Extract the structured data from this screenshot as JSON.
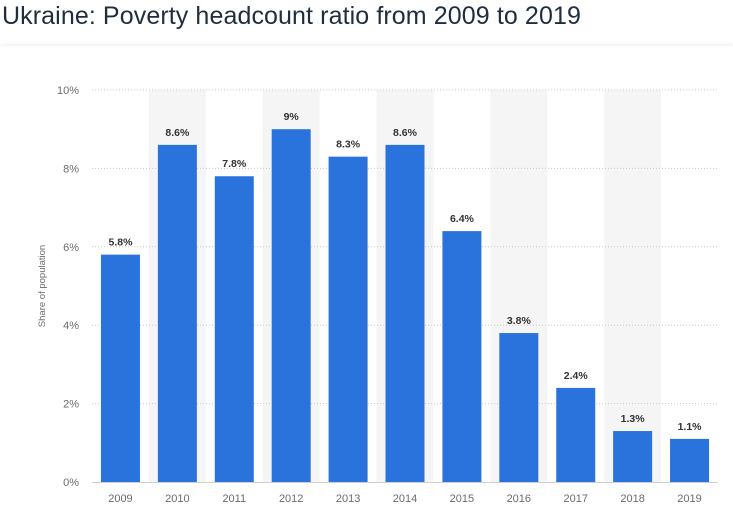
{
  "chart_data": {
    "type": "bar",
    "title": "Ukraine: Poverty headcount ratio from 2009 to 2019",
    "xlabel": "",
    "ylabel": "Share of population",
    "categories": [
      "2009",
      "2010",
      "2011",
      "2012",
      "2013",
      "2014",
      "2015",
      "2016",
      "2017",
      "2018",
      "2019"
    ],
    "values": [
      5.8,
      8.6,
      7.8,
      9,
      8.3,
      8.6,
      6.4,
      3.8,
      2.4,
      1.3,
      1.1
    ],
    "value_labels": [
      "5.8%",
      "8.6%",
      "7.8%",
      "9%",
      "8.3%",
      "8.6%",
      "6.4%",
      "3.8%",
      "2.4%",
      "1.3%",
      "1.1%"
    ],
    "ylim": [
      0,
      10
    ],
    "yticks": [
      0,
      2,
      4,
      6,
      8,
      10
    ],
    "ytick_labels": [
      "0%",
      "2%",
      "4%",
      "6%",
      "8%",
      "10%"
    ],
    "grid": true,
    "bar_color": "#2a73dd"
  }
}
